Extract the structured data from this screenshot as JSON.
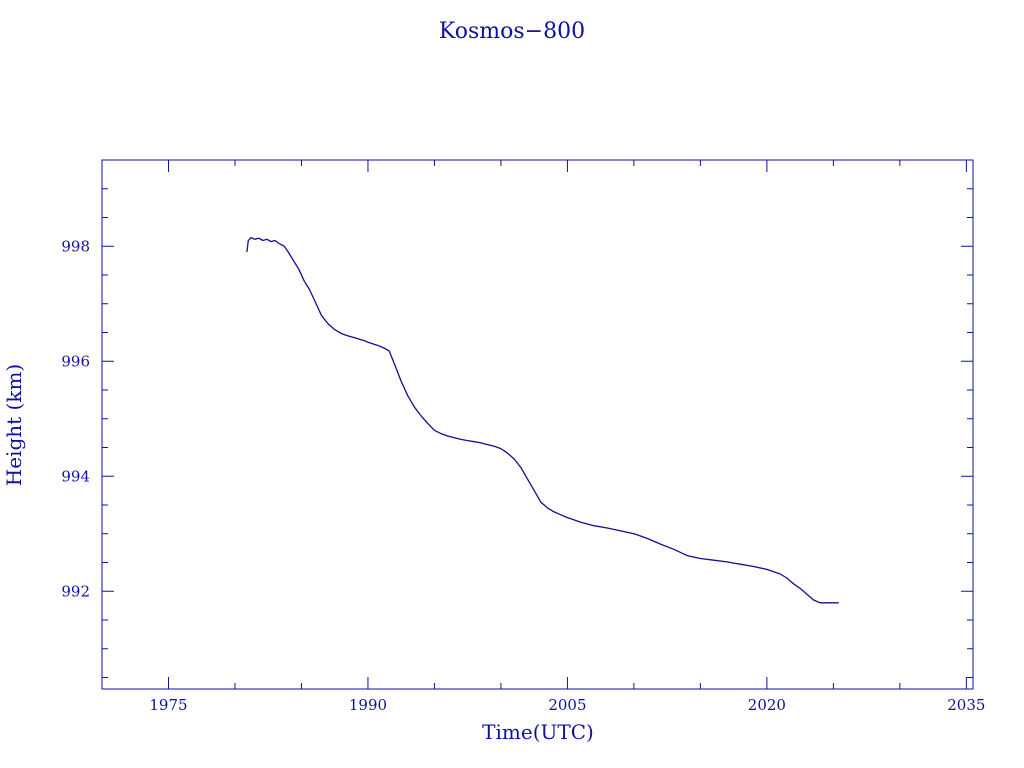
{
  "chart_data": {
    "type": "line",
    "title": "Kosmos−800",
    "xlabel": "Time(UTC)",
    "ylabel": "Height (km)",
    "xlim": [
      1970,
      2035.5
    ],
    "ylim": [
      990.3,
      999.5
    ],
    "xticks": [
      1975,
      1990,
      2005,
      2020,
      2035
    ],
    "xtick_labels": [
      "1975",
      "1990",
      "2005",
      "2020",
      "2035"
    ],
    "yticks": [
      992,
      994,
      996,
      998
    ],
    "ytick_labels": [
      "992",
      "994",
      "996",
      "998"
    ],
    "grid": false,
    "color": "#101090",
    "series": [
      {
        "x": [
          1980.9,
          1981.0,
          1981.2,
          1981.5,
          1981.8,
          1982.1,
          1982.4,
          1982.7,
          1983.0,
          1983.3,
          1983.7,
          1984.0,
          1984.4,
          1984.8,
          1985.2,
          1985.6,
          1986.0,
          1986.5,
          1987.0,
          1987.5,
          1988.0,
          1988.5,
          1989.0,
          1989.4,
          1989.7,
          1990.0,
          1990.4,
          1990.8,
          1991.2,
          1991.6,
          1992.0,
          1992.5,
          1993.0,
          1993.5,
          1994.0,
          1994.5,
          1995.0,
          1995.5,
          1996.0,
          1996.5,
          1997.0,
          1997.5,
          1998.0,
          1998.5,
          1999.0,
          1999.5,
          2000.0,
          2000.5,
          2001.0,
          2001.5,
          2002.0,
          2002.5,
          2003.0,
          2003.5,
          2004.0,
          2004.5,
          2005.0,
          2005.5,
          2006.0,
          2007.0,
          2008.0,
          2009.0,
          2010.0,
          2011.0,
          2012.0,
          2013.0,
          2014.0,
          2015.0,
          2016.0,
          2017.0,
          2017.5,
          2018.0,
          2019.0,
          2020.0,
          2021.0,
          2021.5,
          2022.0,
          2022.5,
          2023.0,
          2023.5,
          2024.0,
          2024.5,
          2025.0,
          2025.4
        ],
        "y": [
          997.9,
          998.1,
          998.15,
          998.12,
          998.14,
          998.1,
          998.12,
          998.08,
          998.1,
          998.05,
          998.0,
          997.9,
          997.75,
          997.6,
          997.4,
          997.25,
          997.05,
          996.8,
          996.65,
          996.55,
          996.48,
          996.44,
          996.41,
          996.38,
          996.36,
          996.33,
          996.3,
          996.27,
          996.23,
          996.18,
          995.95,
          995.65,
          995.4,
          995.2,
          995.05,
          994.92,
          994.8,
          994.74,
          994.7,
          994.67,
          994.64,
          994.62,
          994.6,
          994.58,
          994.55,
          994.52,
          994.48,
          994.4,
          994.3,
          994.15,
          993.95,
          993.75,
          993.55,
          993.45,
          993.38,
          993.33,
          993.28,
          993.24,
          993.2,
          993.14,
          993.1,
          993.05,
          993.0,
          992.92,
          992.82,
          992.73,
          992.62,
          992.57,
          992.54,
          992.51,
          992.49,
          992.47,
          992.43,
          992.38,
          992.3,
          992.23,
          992.13,
          992.05,
          991.95,
          991.85,
          991.8,
          991.8,
          991.8,
          991.8
        ]
      }
    ]
  }
}
